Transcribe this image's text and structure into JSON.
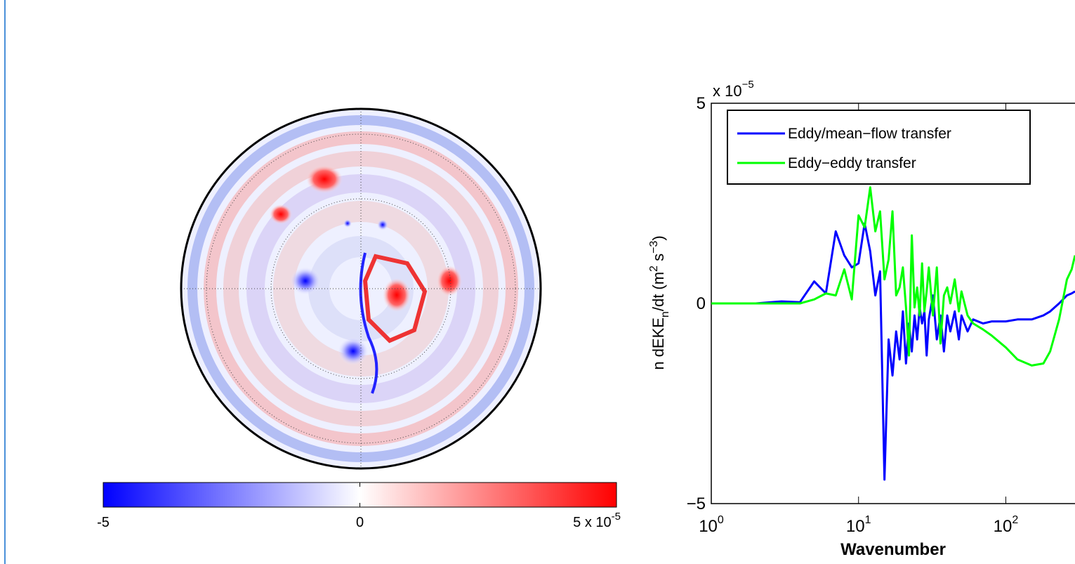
{
  "chart_data": [
    {
      "type": "colormap",
      "clim": [
        -5,
        5
      ],
      "cticks": [
        -5,
        0,
        5
      ],
      "multiplier": {
        "base": "x 10",
        "exponent": "-5"
      },
      "colors": [
        "#0000ff",
        "#ffffff",
        "#ff0000"
      ]
    },
    {
      "type": "line",
      "ylabel": [
        "n dEKE",
        "n",
        "/dt (m",
        "2",
        " s",
        "−3",
        ")"
      ],
      "xlabel": "Wavenumber",
      "multiplier": {
        "base": "x 10",
        "exponent": "−5"
      },
      "log_x": true,
      "xlim": [
        1,
        295
      ],
      "xticks": [
        {
          "value": 1,
          "label": "10",
          "exponent": "0"
        },
        {
          "value": 10,
          "label": "10",
          "exponent": "1"
        },
        {
          "value": 100,
          "label": "10",
          "exponent": "2"
        }
      ],
      "ylim": [
        -5,
        5
      ],
      "yticks": [
        {
          "value": -5,
          "label": "−5"
        },
        0,
        5
      ],
      "legend": "upper left",
      "x": [
        1,
        2,
        3,
        4,
        5,
        6,
        7,
        8,
        9,
        10,
        11,
        12,
        13,
        14,
        15,
        16,
        17,
        18,
        19,
        20,
        21,
        22,
        23,
        24,
        25,
        26,
        27,
        28,
        29,
        30,
        32,
        34,
        36,
        38,
        40,
        42,
        45,
        48,
        50,
        55,
        60,
        70,
        80,
        100,
        120,
        150,
        180,
        200,
        230,
        260,
        280,
        295
      ],
      "series": [
        {
          "name": "Eddy/mean−flow transfer",
          "color": "#0000ff",
          "values": [
            0,
            0,
            0.05,
            0.03,
            0.55,
            0.25,
            1.8,
            1.2,
            0.9,
            1.0,
            2.0,
            1.3,
            0.2,
            0.8,
            -4.4,
            -0.9,
            -1.8,
            -0.7,
            -1.4,
            -0.2,
            -1.5,
            -0.5,
            -1.2,
            -0.3,
            -0.9,
            -0.1,
            -0.5,
            -0.2,
            -1.3,
            -0.4,
            0.2,
            -0.9,
            -0.3,
            -1.2,
            -0.3,
            -0.7,
            -0.2,
            -0.9,
            -0.3,
            -0.7,
            -0.4,
            -0.5,
            -0.45,
            -0.45,
            -0.4,
            -0.4,
            -0.3,
            -0.2,
            0,
            0.2,
            0.25,
            0.3
          ]
        },
        {
          "name": "Eddy−eddy transfer",
          "color": "#00ff00",
          "values": [
            0,
            0,
            0,
            0,
            0.1,
            0.25,
            0.2,
            0.85,
            0.1,
            2.2,
            1.9,
            2.9,
            1.8,
            2.3,
            0.6,
            1.1,
            2.3,
            0.2,
            0.4,
            0.9,
            -0.1,
            -1.3,
            1.7,
            -0.1,
            0.4,
            -0.3,
            1.0,
            -0.2,
            0.3,
            0.9,
            -0.3,
            0.9,
            -1.0,
            0.2,
            0.4,
            0.0,
            0.6,
            -0.2,
            0.3,
            -0.3,
            -0.5,
            -0.65,
            -0.8,
            -1.1,
            -1.4,
            -1.55,
            -1.5,
            -1.2,
            -0.4,
            0.6,
            0.85,
            1.2
          ]
        }
      ]
    }
  ]
}
